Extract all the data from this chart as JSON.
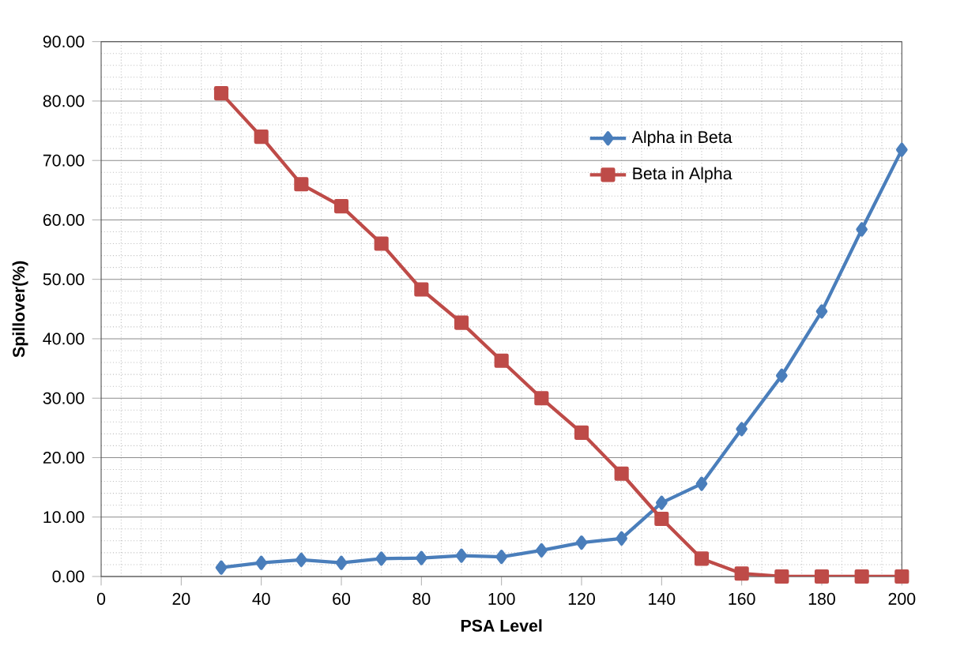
{
  "chart_data": {
    "type": "line",
    "xlabel": "PSA  Level",
    "ylabel": "Spillover(%)",
    "x": [
      30,
      40,
      50,
      60,
      70,
      80,
      90,
      100,
      110,
      120,
      130,
      140,
      150,
      160,
      170,
      180,
      190,
      200
    ],
    "series": [
      {
        "name": "Alpha in Beta",
        "color": "#4a7ebb",
        "marker": "diamond",
        "values": [
          1.5,
          2.3,
          2.8,
          2.3,
          3.0,
          3.1,
          3.5,
          3.3,
          4.4,
          5.7,
          6.4,
          12.4,
          15.6,
          24.8,
          33.8,
          44.6,
          58.4,
          71.8
        ]
      },
      {
        "name": "Beta in Alpha",
        "color": "#be4b48",
        "marker": "square",
        "values": [
          81.3,
          74.0,
          66.0,
          62.3,
          56.0,
          48.3,
          42.7,
          36.3,
          30.0,
          24.2,
          17.3,
          9.7,
          3.0,
          0.5,
          0.0,
          0.0,
          0.0,
          0.0
        ]
      }
    ],
    "xlim": [
      0,
      200
    ],
    "xticks": [
      0,
      20,
      40,
      60,
      80,
      100,
      120,
      140,
      160,
      180,
      200
    ],
    "ylim": [
      0,
      90
    ],
    "yticks": [
      {
        "value": 0,
        "label": "0.00"
      },
      {
        "value": 10,
        "label": "10.00"
      },
      {
        "value": 20,
        "label": "20.00"
      },
      {
        "value": 30,
        "label": "30.00"
      },
      {
        "value": 40,
        "label": "40.00"
      },
      {
        "value": 50,
        "label": "50.00"
      },
      {
        "value": 60,
        "label": "60.00"
      },
      {
        "value": 70,
        "label": "70.00"
      },
      {
        "value": 80,
        "label": "80.00"
      },
      {
        "value": 90,
        "label": "90.00"
      }
    ],
    "grid": true,
    "legend": "top right",
    "line_style": "solid"
  }
}
